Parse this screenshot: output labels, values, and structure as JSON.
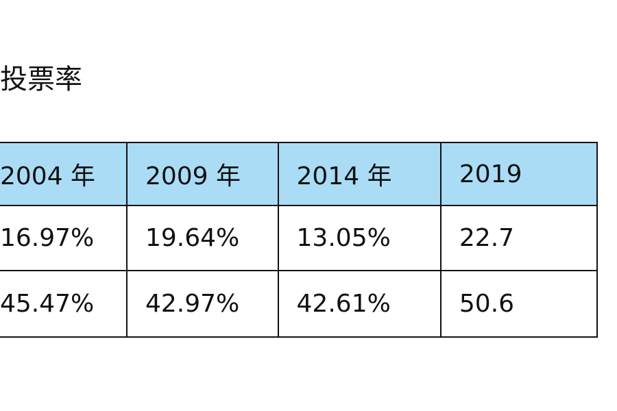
{
  "title": "投票率",
  "table": {
    "header": [
      "2004 年",
      "2009 年",
      "2014 年",
      "2019"
    ],
    "rows": [
      [
        "16.97%",
        "19.64%",
        "13.05%",
        "22.7"
      ],
      [
        "45.47%",
        "42.97%",
        "42.61%",
        "50.6"
      ]
    ]
  }
}
